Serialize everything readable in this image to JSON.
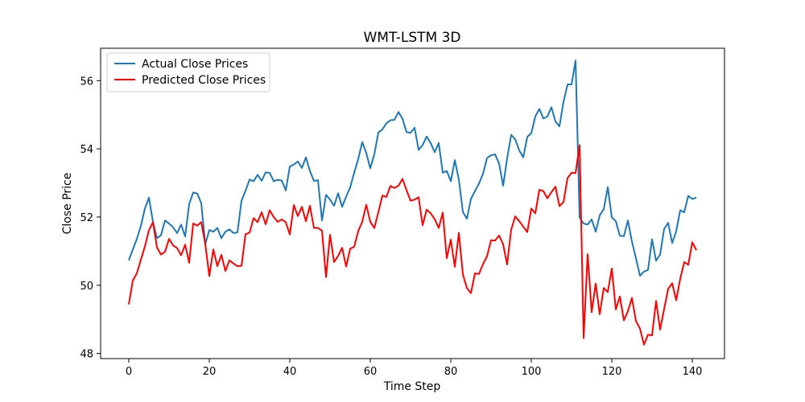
{
  "chart_data": {
    "type": "line",
    "title": "WMT-LSTM 3D",
    "xlabel": "Time Step",
    "ylabel": "Close Price",
    "xlim": [
      -7,
      148
    ],
    "ylim": [
      47.85,
      56.95
    ],
    "xticks": [
      0,
      20,
      40,
      60,
      80,
      100,
      120,
      140
    ],
    "yticks": [
      48,
      50,
      52,
      54,
      56
    ],
    "grid": false,
    "legend_position": "top-left",
    "series": [
      {
        "name": "Actual Close Prices",
        "color": "#1f77b4",
        "values": [
          50.73,
          51.05,
          51.36,
          51.74,
          52.25,
          52.57,
          51.86,
          51.38,
          51.47,
          51.9,
          51.81,
          51.7,
          51.53,
          51.78,
          51.43,
          52.38,
          52.72,
          52.69,
          52.41,
          51.2,
          51.62,
          51.57,
          51.68,
          51.38,
          51.57,
          51.64,
          51.53,
          51.55,
          52.48,
          52.77,
          53.1,
          53.05,
          53.24,
          53.06,
          53.31,
          53.3,
          53.05,
          53.09,
          53.07,
          52.78,
          53.48,
          53.54,
          53.63,
          53.44,
          53.75,
          53.35,
          53.06,
          53.08,
          51.9,
          52.65,
          52.51,
          52.33,
          52.7,
          52.3,
          52.6,
          52.87,
          53.3,
          53.7,
          54.2,
          53.88,
          53.43,
          53.84,
          54.48,
          54.57,
          54.75,
          54.84,
          54.85,
          55.08,
          54.88,
          54.49,
          54.47,
          54.62,
          53.97,
          54.11,
          54.36,
          54.17,
          53.9,
          54.17,
          53.3,
          53.35,
          53.05,
          53.67,
          53.1,
          52.15,
          51.95,
          52.53,
          52.76,
          52.98,
          53.27,
          53.73,
          53.81,
          53.84,
          53.57,
          52.92,
          53.72,
          54.41,
          54.28,
          53.96,
          53.75,
          54.35,
          54.46,
          54.95,
          55.17,
          54.89,
          54.95,
          55.22,
          54.8,
          54.66,
          55.38,
          55.89,
          55.89,
          56.59,
          51.99,
          51.81,
          51.78,
          51.93,
          51.57,
          52.05,
          52.23,
          52.88,
          51.99,
          51.88,
          51.45,
          51.44,
          51.9,
          51.28,
          50.79,
          50.28,
          50.4,
          50.45,
          51.35,
          50.72,
          50.9,
          51.65,
          51.83,
          51.24,
          51.58,
          52.2,
          52.14,
          52.62,
          52.53,
          52.57
        ]
      },
      {
        "name": "Predicted Close Prices",
        "color": "#ff0000",
        "values": [
          49.44,
          50.14,
          50.35,
          50.75,
          51.14,
          51.61,
          51.85,
          51.11,
          50.9,
          50.98,
          51.36,
          51.17,
          51.09,
          50.88,
          51.19,
          50.66,
          51.81,
          51.75,
          51.85,
          51.21,
          50.27,
          51.05,
          50.56,
          50.89,
          50.42,
          50.73,
          50.64,
          50.56,
          50.57,
          51.5,
          51.54,
          51.97,
          51.85,
          52.14,
          51.79,
          52.2,
          52.0,
          51.86,
          51.93,
          51.85,
          51.49,
          52.35,
          52.03,
          52.3,
          51.88,
          52.33,
          51.68,
          51.68,
          51.6,
          50.24,
          51.48,
          50.68,
          50.86,
          51.1,
          50.55,
          51.07,
          51.13,
          51.59,
          51.86,
          52.36,
          51.86,
          51.68,
          52.14,
          52.63,
          52.59,
          52.91,
          52.85,
          52.92,
          53.12,
          52.79,
          52.48,
          52.51,
          52.58,
          51.76,
          52.22,
          52.11,
          51.94,
          51.68,
          52.13,
          50.79,
          51.34,
          50.54,
          51.54,
          50.32,
          49.92,
          49.77,
          50.35,
          50.33,
          50.62,
          50.85,
          51.32,
          51.31,
          51.46,
          51.2,
          50.61,
          51.63,
          52.02,
          51.88,
          51.72,
          51.56,
          52.25,
          52.11,
          52.8,
          52.76,
          52.55,
          52.73,
          52.89,
          52.32,
          52.44,
          53.14,
          53.3,
          53.29,
          54.11,
          48.45,
          50.91,
          49.21,
          50.05,
          49.15,
          49.92,
          49.8,
          50.49,
          49.29,
          49.67,
          48.97,
          49.24,
          49.63,
          48.95,
          48.73,
          48.26,
          48.55,
          48.53,
          49.54,
          48.7,
          49.3,
          49.89,
          50.06,
          49.56,
          50.19,
          50.68,
          50.6,
          51.26,
          51.03
        ]
      }
    ]
  }
}
